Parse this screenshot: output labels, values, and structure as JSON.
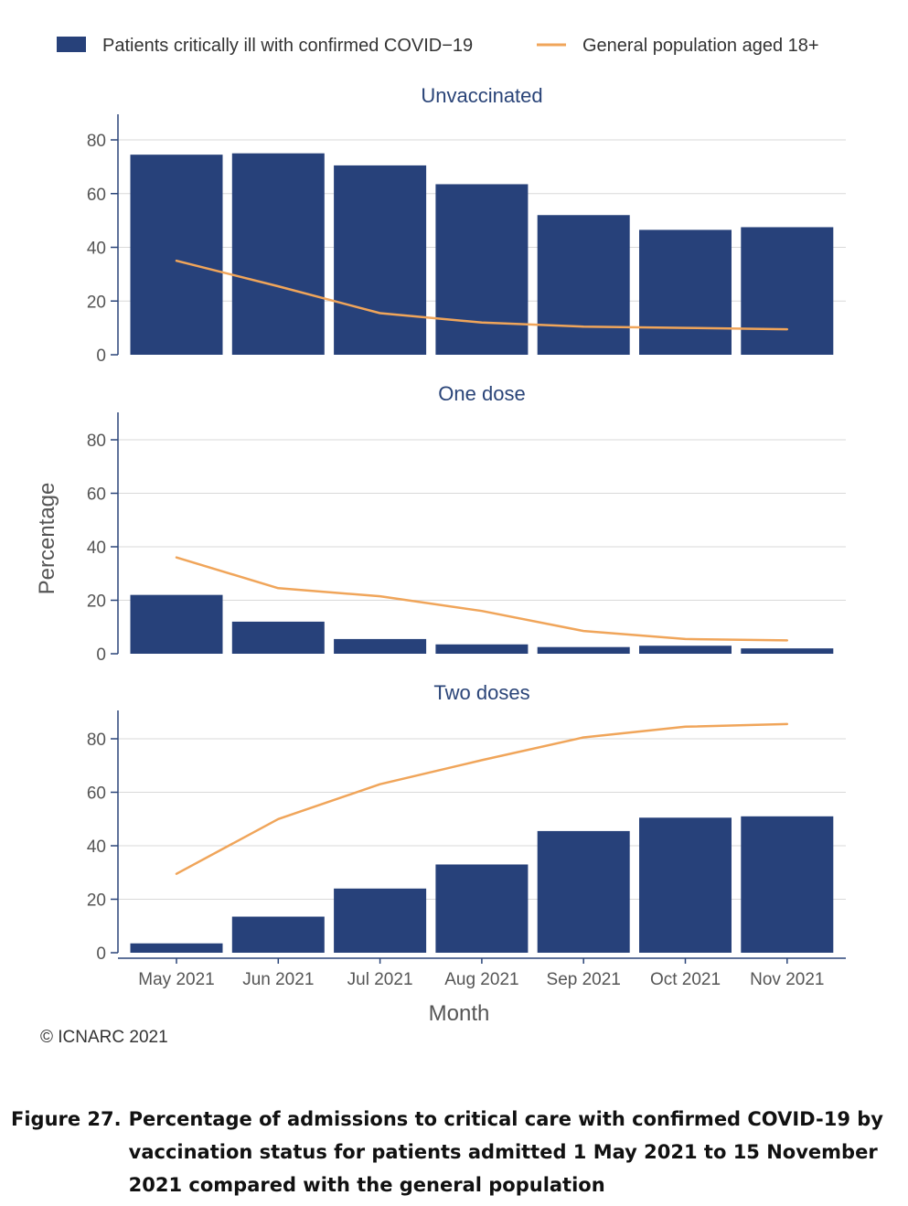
{
  "chart_data": {
    "type": "bar",
    "categories": [
      "May 2021",
      "Jun 2021",
      "Jul 2021",
      "Aug 2021",
      "Sep 2021",
      "Oct 2021",
      "Nov 2021"
    ],
    "xlabel": "Month",
    "ylabel": "Percentage",
    "ylim": [
      0,
      90
    ],
    "yticks": [
      0,
      20,
      40,
      60,
      80
    ],
    "grid": true,
    "legend_placement": "top",
    "legend": [
      {
        "name": "Patients critically ill with confirmed COVID−19",
        "kind": "bar",
        "color": "#27417a"
      },
      {
        "name": "General population aged 18+",
        "kind": "line",
        "color": "#f0a55a"
      }
    ],
    "panels": [
      {
        "title": "Unvaccinated",
        "bars": [
          74.5,
          75,
          70.5,
          63.5,
          52,
          46.5,
          47.5
        ],
        "line": [
          35,
          25.5,
          15.5,
          12,
          10.5,
          10,
          9.5
        ]
      },
      {
        "title": "One dose",
        "bars": [
          22,
          12,
          5.5,
          3.5,
          2.5,
          3,
          2
        ],
        "line": [
          36,
          24.5,
          21.5,
          16,
          8.5,
          5.5,
          5
        ]
      },
      {
        "title": "Two doses",
        "bars": [
          3.5,
          13.5,
          24,
          33,
          45.5,
          50.5,
          51
        ],
        "line": [
          29.5,
          50,
          63,
          72,
          80.5,
          84.5,
          85.5
        ]
      }
    ]
  },
  "copyright": "© ICNARC 2021",
  "caption": {
    "label": "Figure 27.",
    "text": "Percentage of admissions to critical care with confirmed COVID-19 by vaccination status for patients admitted 1 May 2021 to 15 November 2021 compared with the general population"
  }
}
